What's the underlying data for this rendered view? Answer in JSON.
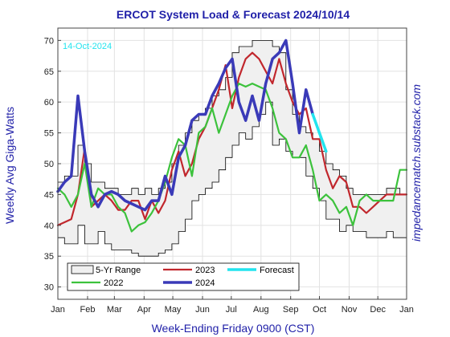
{
  "chart_data": {
    "type": "line",
    "title": "ERCOT System Load & Forecast 2024/10/14",
    "xlabel": "Week-Ending Friday 0900 (CST)",
    "ylabel": "Weekly Avg Giga-Watts",
    "side_label": "impedancematch.substack.com",
    "annotation": "14-Oct-2024",
    "xlim": [
      0,
      52
    ],
    "ylim": [
      28,
      72
    ],
    "grid": true,
    "legend_position": "bottom-left",
    "x_ticks": [
      {
        "x": 0,
        "label": "Jan"
      },
      {
        "x": 4.43,
        "label": "Feb"
      },
      {
        "x": 8.43,
        "label": "Mar"
      },
      {
        "x": 12.86,
        "label": "Apr"
      },
      {
        "x": 17.14,
        "label": "May"
      },
      {
        "x": 21.57,
        "label": "Jun"
      },
      {
        "x": 25.86,
        "label": "Jul"
      },
      {
        "x": 30.29,
        "label": "Aug"
      },
      {
        "x": 34.71,
        "label": "Sep"
      },
      {
        "x": 39,
        "label": "Oct"
      },
      {
        "x": 43.43,
        "label": "Nov"
      },
      {
        "x": 47.71,
        "label": "Dec"
      },
      {
        "x": 52,
        "label": "Jan"
      }
    ],
    "y_ticks": [
      30,
      35,
      40,
      45,
      50,
      55,
      60,
      65,
      70
    ],
    "range_band": {
      "name": "5-Yr Range",
      "x": [
        0,
        1,
        2,
        3,
        4,
        5,
        6,
        7,
        8,
        9,
        10,
        11,
        12,
        13,
        14,
        15,
        16,
        17,
        18,
        19,
        20,
        21,
        22,
        23,
        24,
        25,
        26,
        27,
        28,
        29,
        30,
        31,
        32,
        33,
        34,
        35,
        36,
        37,
        38,
        39,
        40,
        41,
        42,
        43,
        44,
        45,
        46,
        47,
        48,
        49,
        50,
        51,
        52
      ],
      "low": [
        38,
        37,
        37,
        40,
        37,
        37,
        39,
        37,
        36,
        36,
        36,
        35.5,
        35,
        35,
        35,
        35.5,
        36,
        37,
        39,
        41,
        44,
        45,
        46,
        47,
        49,
        51,
        53,
        55,
        54,
        56,
        58,
        60,
        53,
        54,
        52,
        51,
        51,
        48,
        46,
        44,
        41,
        41,
        39,
        40,
        39,
        39,
        38,
        38,
        38,
        39,
        38,
        38,
        38
      ],
      "high": [
        47,
        48,
        48,
        53,
        50,
        47,
        47,
        46,
        46,
        45,
        45,
        46,
        45,
        46,
        45,
        46,
        47,
        50,
        53,
        55,
        57,
        58,
        59,
        61,
        62,
        64,
        68,
        69,
        69,
        70,
        70,
        70,
        69,
        68,
        62,
        58,
        56,
        55,
        54,
        52,
        50,
        49,
        48,
        46,
        45,
        45,
        45,
        45,
        45,
        46,
        46,
        45,
        46
      ]
    },
    "series": [
      {
        "name": "2023",
        "color": "#c1272d",
        "x": [
          0,
          1,
          2,
          3,
          4,
          5,
          6,
          7,
          8,
          9,
          10,
          11,
          12,
          13,
          14,
          15,
          16,
          17,
          18,
          19,
          20,
          21,
          22,
          23,
          24,
          25,
          26,
          27,
          28,
          29,
          30,
          31,
          32,
          33,
          34,
          35,
          36,
          37,
          38,
          39,
          40,
          41,
          42,
          43,
          44,
          45,
          46,
          47,
          48,
          49,
          50,
          51,
          52
        ],
        "y": [
          40,
          40.5,
          41,
          45,
          52.5,
          43,
          44,
          45,
          44,
          42.5,
          42.5,
          44,
          44,
          41,
          44,
          42,
          44,
          49,
          52,
          48,
          50,
          54,
          56,
          59,
          62,
          66,
          59,
          64,
          67,
          68,
          67,
          65,
          63,
          67,
          63,
          60,
          58,
          59,
          54,
          54,
          49,
          46,
          48,
          47,
          43,
          43,
          42,
          43,
          44,
          45,
          45,
          45,
          45
        ]
      },
      {
        "name": "2022",
        "color": "#3cc23c",
        "x": [
          0,
          1,
          2,
          3,
          4,
          5,
          6,
          7,
          8,
          9,
          10,
          11,
          12,
          13,
          14,
          15,
          16,
          17,
          18,
          19,
          20,
          21,
          22,
          23,
          24,
          25,
          26,
          27,
          28,
          29,
          30,
          31,
          32,
          33,
          34,
          35,
          36,
          37,
          38,
          39,
          40,
          41,
          42,
          43,
          44,
          45,
          46,
          47,
          48,
          49,
          50,
          51,
          52
        ],
        "y": [
          46,
          45,
          43,
          45,
          50,
          43,
          46,
          45,
          45,
          43,
          42,
          39,
          40,
          40.5,
          42,
          44,
          47,
          51,
          54,
          53,
          48,
          55,
          56,
          59,
          55,
          58,
          61,
          63,
          62.5,
          63,
          62.5,
          62,
          59,
          55,
          54,
          51,
          51,
          53,
          49,
          44,
          45,
          44,
          42,
          43,
          40,
          44,
          45,
          44,
          44,
          44,
          44,
          49,
          49
        ]
      },
      {
        "name": "2024",
        "color": "#3a3ab8",
        "x": [
          0,
          1,
          2,
          3,
          4,
          5,
          6,
          7,
          8,
          9,
          10,
          11,
          12,
          13,
          14,
          15,
          16,
          17,
          18,
          19,
          20,
          21,
          22,
          23,
          24,
          25,
          26,
          27,
          28,
          29,
          30,
          31,
          32,
          33,
          34,
          35,
          36,
          37,
          38
        ],
        "y": [
          45.5,
          47,
          48,
          61,
          52,
          45,
          43,
          45,
          45.5,
          45,
          44,
          43.5,
          43,
          42.5,
          44,
          44,
          48,
          45,
          51,
          53,
          57,
          58,
          58,
          61,
          63,
          65.5,
          67,
          60,
          57,
          61,
          57,
          63,
          67,
          68,
          70,
          63,
          55,
          62,
          58
        ]
      },
      {
        "name": "Forecast",
        "color": "#22e4ee",
        "x": [
          38,
          39,
          40
        ],
        "y": [
          58,
          55,
          52
        ]
      }
    ]
  }
}
